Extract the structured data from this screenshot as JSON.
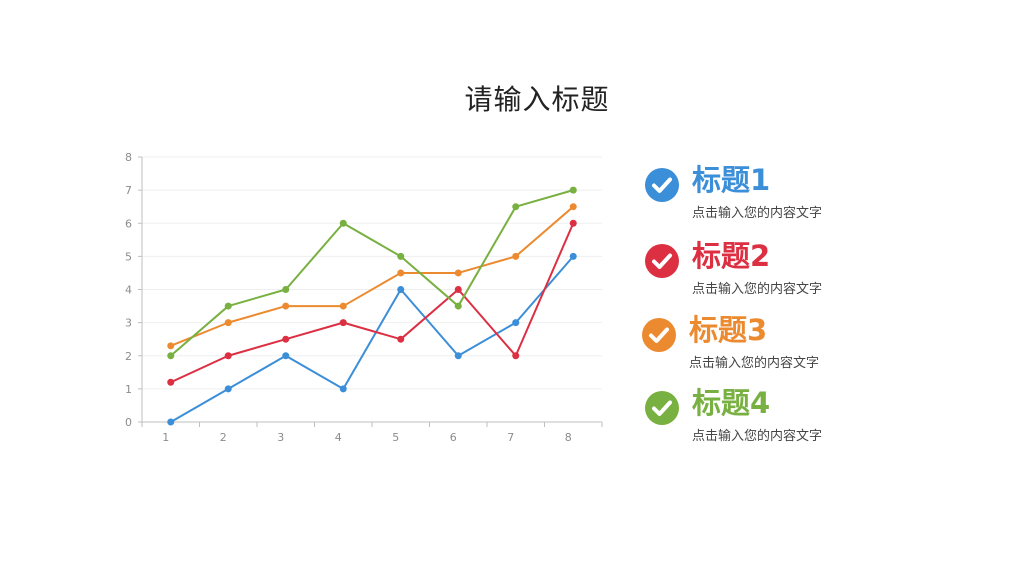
{
  "page_title": "请输入标题",
  "chart_data": {
    "type": "line",
    "x": [
      1,
      2,
      3,
      4,
      5,
      6,
      7,
      8
    ],
    "ylim": [
      0,
      8
    ],
    "yticks": [
      0,
      1,
      2,
      3,
      4,
      5,
      6,
      7,
      8
    ],
    "grid": true,
    "series": [
      {
        "color": "#3b8ed8",
        "values": [
          0,
          1,
          2,
          1,
          4,
          2,
          3,
          5
        ]
      },
      {
        "color": "#dc2f42",
        "values": [
          1.2,
          2,
          2.5,
          3,
          2.5,
          4,
          2,
          6
        ]
      },
      {
        "color": "#ec8a2f",
        "values": [
          2.3,
          3,
          3.5,
          3.5,
          4.5,
          4.5,
          5,
          6.5
        ]
      },
      {
        "color": "#78b041",
        "values": [
          2,
          3.5,
          4,
          6,
          5,
          3.5,
          6.5,
          7
        ]
      }
    ]
  },
  "legend": [
    {
      "title": "标题1",
      "desc": "点击输入您的内容文字",
      "color": "#3b8ed8",
      "icon": "check-circle-icon"
    },
    {
      "title": "标题2",
      "desc": "点击输入您的内容文字",
      "color": "#dc2f42",
      "icon": "check-circle-icon"
    },
    {
      "title": "标题3",
      "desc": "点击输入您的内容文字",
      "color": "#ec8a2f",
      "icon": "check-circle-icon"
    },
    {
      "title": "标题4",
      "desc": "点击输入您的内容文字",
      "color": "#78b041",
      "icon": "check-circle-icon"
    }
  ]
}
